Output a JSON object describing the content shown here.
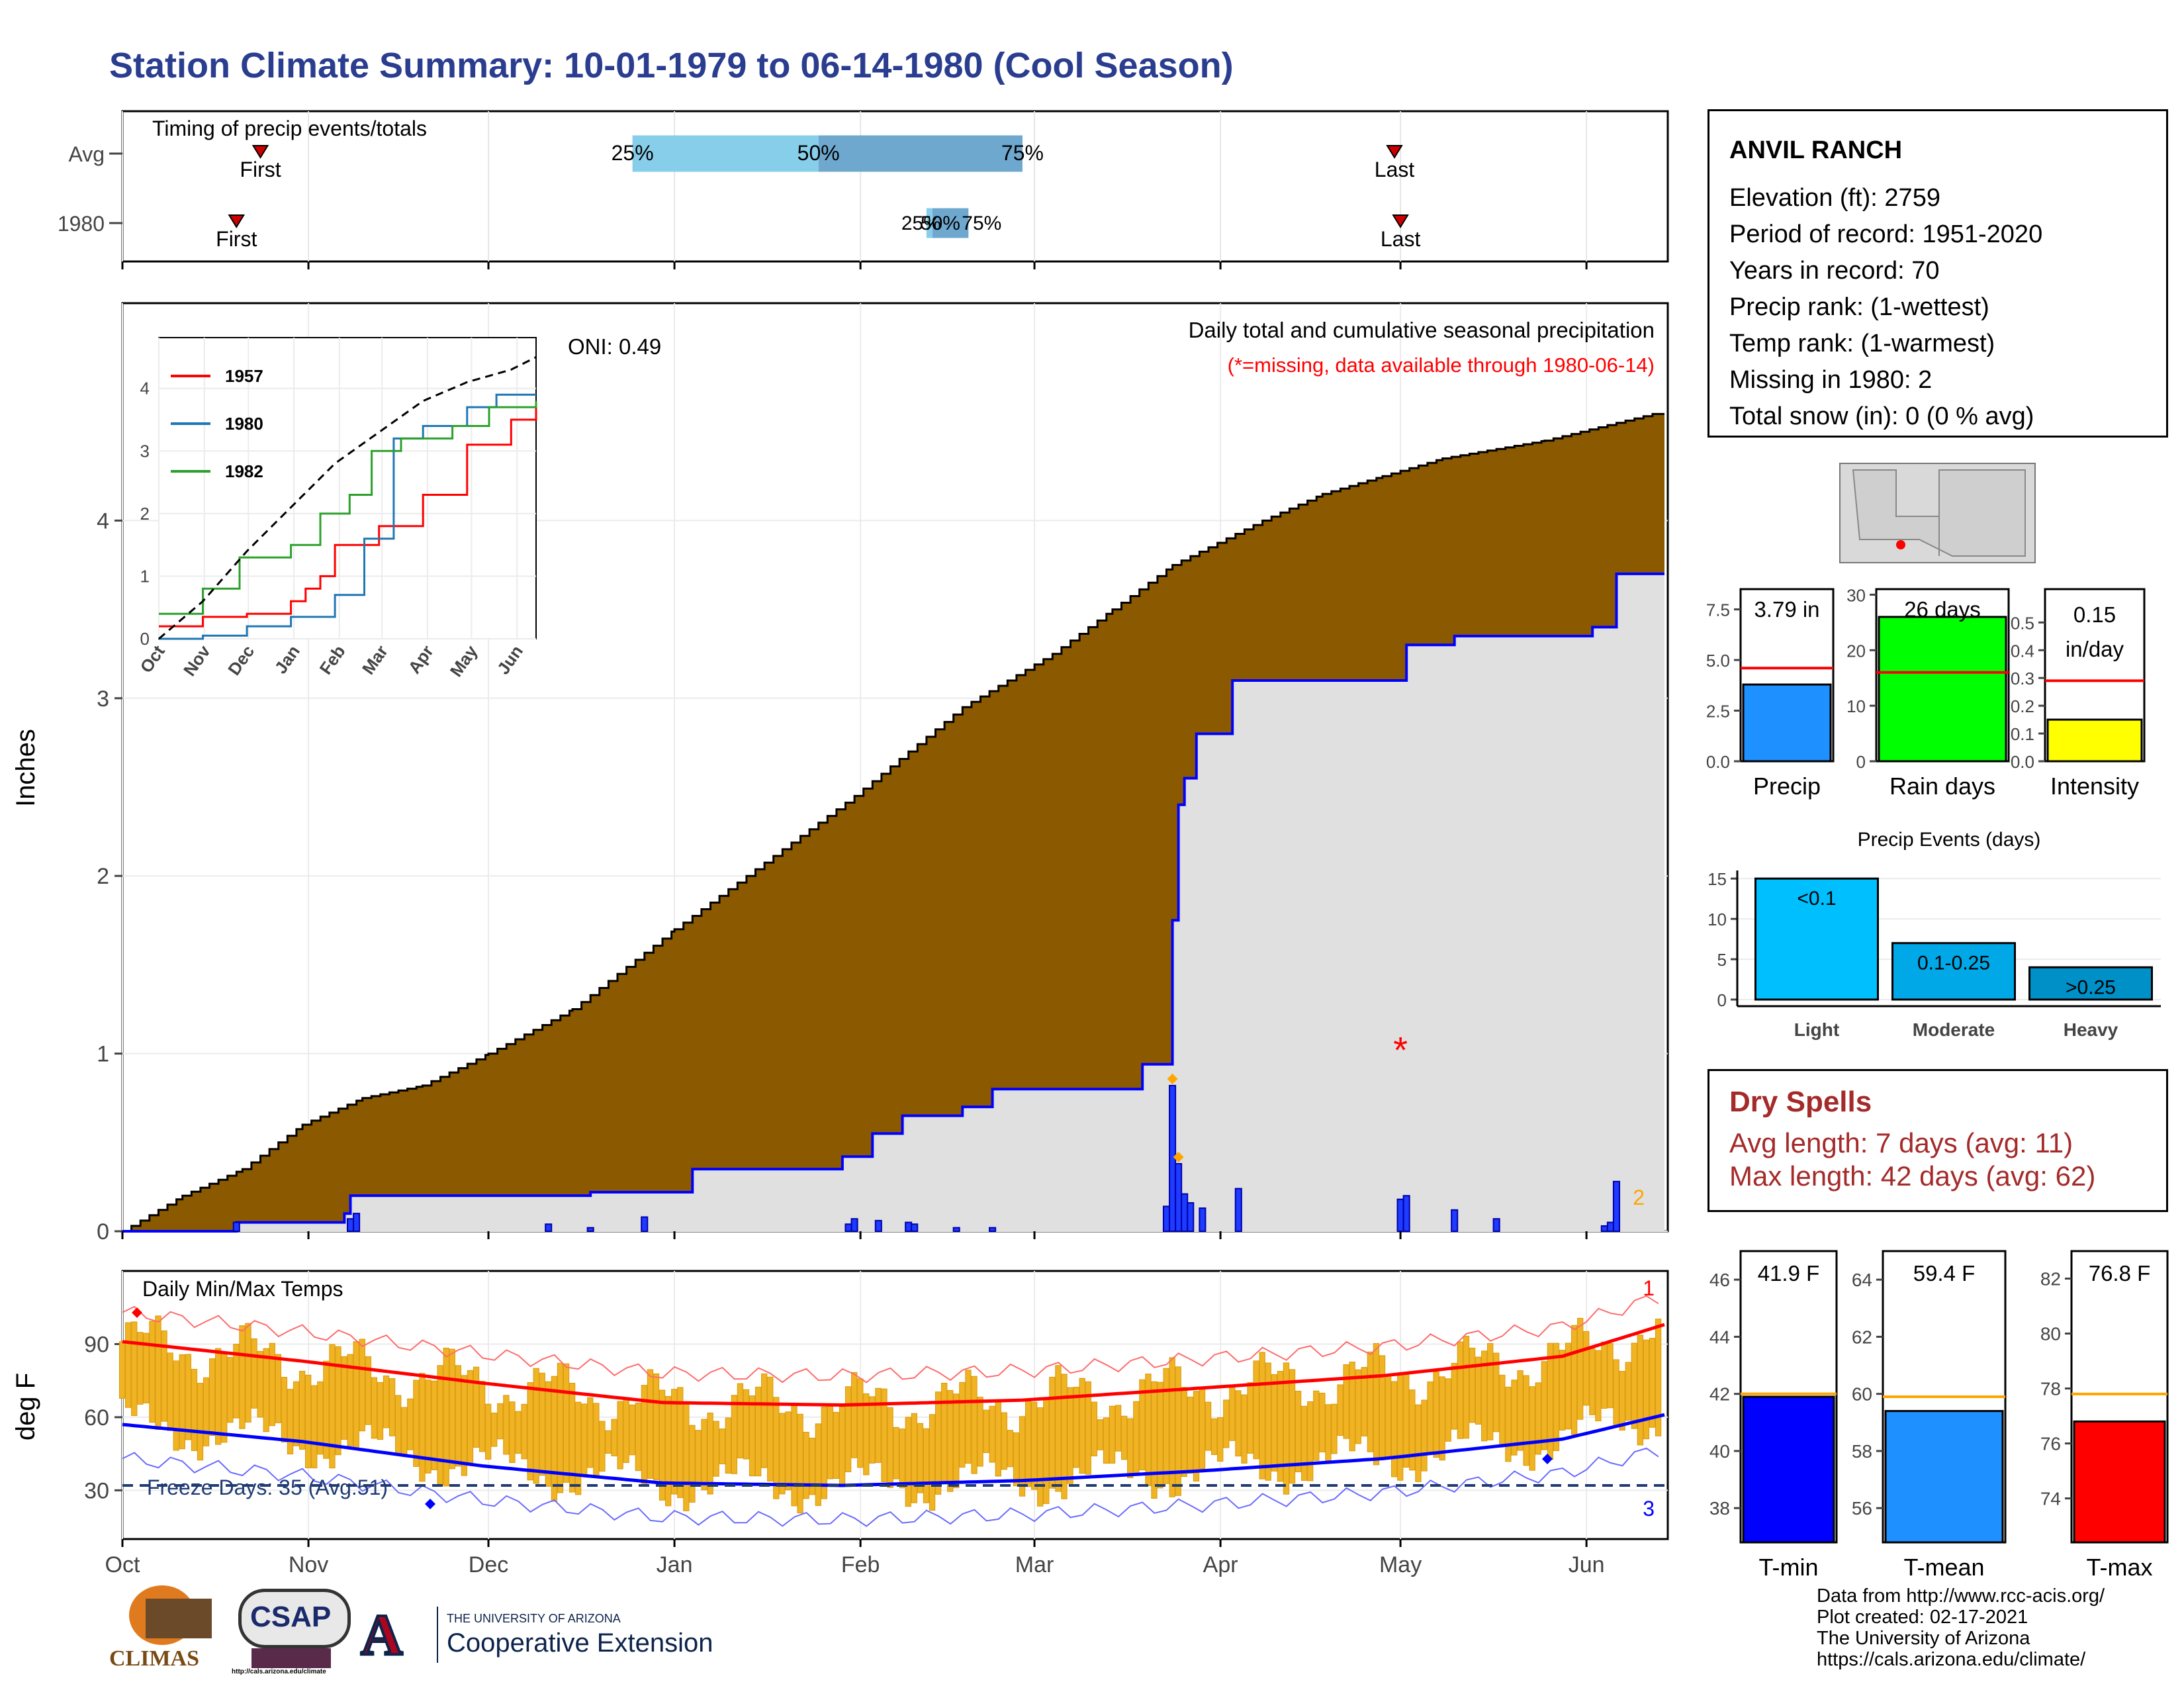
{
  "title": "Station Climate Summary: 10-01-1979 to 06-14-1980 (Cool Season)",
  "station": {
    "name": "ANVIL RANCH",
    "lines": [
      "Elevation (ft): 2759",
      "Period of record: 1951-2020",
      "Years in record: 70",
      "Precip rank:  (1-wettest)",
      "Temp rank:  (1-warmest)",
      "Missing in 1980: 2",
      "Total snow (in): 0 (0 % avg)"
    ]
  },
  "dry_spells": {
    "heading": "Dry Spells",
    "avg": "Avg length: 7 days (avg: 11)",
    "max": "Max length: 42 days (avg: 62)"
  },
  "footer": {
    "lines": [
      "Data from http://www.rcc-acis.org/",
      "Plot created: 02-17-2021",
      "The University of Arizona",
      "https://cals.arizona.edu/climate/"
    ]
  },
  "logos": {
    "climas": "CLIMAS",
    "csap": "CSAP",
    "csap_url": "http://cals.arizona.edu/climate",
    "ua_small": "THE UNIVERSITY OF ARIZONA",
    "ua_big": "Cooperative Extension"
  },
  "colors": {
    "title": "#2a3d8f",
    "precip_fill": "#8b5a00",
    "precip_1980": "#0000ff",
    "gray_fill": "#e0e0e0",
    "temp_bar": "#f0b323",
    "tmax_line": "#ff0000",
    "tmin_line": "#0000ff",
    "dry": "#a52a2a"
  },
  "chart_data": [
    {
      "id": "timing",
      "type": "bar",
      "title": "Timing of precip events/totals",
      "rows": [
        "Avg",
        "1980"
      ],
      "months": [
        "Oct",
        "Nov",
        "Dec",
        "Jan",
        "Feb",
        "Mar",
        "Apr",
        "May",
        "Jun"
      ],
      "avg": {
        "first": "1979-10-24",
        "q25": "1979-12-25",
        "q50": "1980-01-25",
        "q75": "1980-02-28",
        "last": "1980-04-30"
      },
      "y1980": {
        "first": "1979-10-20",
        "q25": "1980-02-12",
        "q50": "1980-02-13",
        "q75": "1980-02-19",
        "last": "1980-05-01"
      },
      "labels": {
        "first": "First",
        "last": "Last",
        "q25": "25%",
        "q50": "50%",
        "q75": "75%"
      }
    },
    {
      "id": "main_precip",
      "type": "area",
      "title": "Daily total and cumulative seasonal precipitation",
      "subtitle": "(*=missing, data available through 1980-06-14)",
      "ylabel": "Inches",
      "ylim": [
        0,
        5
      ],
      "yticks": [
        0,
        1,
        2,
        3,
        4
      ],
      "x_months": [
        "Oct",
        "Nov",
        "Dec",
        "Jan",
        "Feb",
        "Mar",
        "Apr",
        "May",
        "Jun"
      ],
      "oni": "ONI: 0.49",
      "missing_count": "2",
      "avg_cumulative": [
        [
          0,
          0
        ],
        [
          10,
          0.2
        ],
        [
          20,
          0.35
        ],
        [
          30,
          0.6
        ],
        [
          40,
          0.75
        ],
        [
          50,
          0.82
        ],
        [
          61,
          1.0
        ],
        [
          75,
          1.25
        ],
        [
          92,
          1.7
        ],
        [
          110,
          2.15
        ],
        [
          122,
          2.45
        ],
        [
          140,
          2.95
        ],
        [
          155,
          3.25
        ],
        [
          165,
          3.5
        ],
        [
          175,
          3.75
        ],
        [
          190,
          4.0
        ],
        [
          200,
          4.15
        ],
        [
          210,
          4.25
        ],
        [
          220,
          4.35
        ],
        [
          237,
          4.45
        ],
        [
          255,
          4.6
        ],
        [
          257,
          4.6
        ]
      ],
      "cum_1980": [
        [
          0,
          0
        ],
        [
          19,
          0
        ],
        [
          19,
          0.05
        ],
        [
          37,
          0.05
        ],
        [
          37,
          0.1
        ],
        [
          38,
          0.1
        ],
        [
          38,
          0.2
        ],
        [
          78,
          0.2
        ],
        [
          78,
          0.22
        ],
        [
          95,
          0.22
        ],
        [
          95,
          0.35
        ],
        [
          120,
          0.35
        ],
        [
          120,
          0.42
        ],
        [
          125,
          0.42
        ],
        [
          125,
          0.55
        ],
        [
          130,
          0.55
        ],
        [
          130,
          0.6
        ],
        [
          130,
          0.65
        ],
        [
          140,
          0.65
        ],
        [
          140,
          0.7
        ],
        [
          145,
          0.7
        ],
        [
          145,
          0.75
        ],
        [
          145,
          0.8
        ],
        [
          170,
          0.8
        ],
        [
          170,
          0.94
        ],
        [
          175,
          0.94
        ],
        [
          175,
          1.75
        ],
        [
          176,
          1.75
        ],
        [
          176,
          2.4
        ],
        [
          177,
          2.4
        ],
        [
          177,
          2.55
        ],
        [
          179,
          2.55
        ],
        [
          179,
          2.8
        ],
        [
          185,
          2.8
        ],
        [
          185,
          3.1
        ],
        [
          214,
          3.1
        ],
        [
          214,
          3.3
        ],
        [
          222,
          3.3
        ],
        [
          222,
          3.35
        ],
        [
          245,
          3.35
        ],
        [
          245,
          3.4
        ],
        [
          249,
          3.4
        ],
        [
          249,
          3.7
        ],
        [
          257,
          3.7
        ]
      ],
      "daily_1980": [
        [
          19,
          0.05
        ],
        [
          38,
          0.07
        ],
        [
          39,
          0.1
        ],
        [
          71,
          0.04
        ],
        [
          78,
          0.02
        ],
        [
          87,
          0.08
        ],
        [
          121,
          0.04
        ],
        [
          122,
          0.07
        ],
        [
          126,
          0.06
        ],
        [
          131,
          0.05
        ],
        [
          132,
          0.04
        ],
        [
          139,
          0.02
        ],
        [
          145,
          0.02
        ],
        [
          174,
          0.14
        ],
        [
          175,
          0.82
        ],
        [
          176,
          0.38
        ],
        [
          177,
          0.21
        ],
        [
          178,
          0.16
        ],
        [
          180,
          0.13
        ],
        [
          186,
          0.24
        ],
        [
          213,
          0.18
        ],
        [
          214,
          0.2
        ],
        [
          222,
          0.12
        ],
        [
          229,
          0.07
        ],
        [
          247,
          0.03
        ],
        [
          248,
          0.05
        ],
        [
          249,
          0.28
        ]
      ],
      "inset": {
        "type": "line",
        "yticks": [
          0,
          1,
          2,
          3,
          4
        ],
        "months": [
          "Oct",
          "Nov",
          "Dec",
          "Jan",
          "Feb",
          "Mar",
          "Apr",
          "May",
          "Jun"
        ],
        "series": [
          {
            "name": "1957",
            "color": "#ff0000",
            "values": [
              [
                0,
                0.2
              ],
              [
                30,
                0.35
              ],
              [
                60,
                0.4
              ],
              [
                90,
                0.6
              ],
              [
                100,
                0.8
              ],
              [
                110,
                1.0
              ],
              [
                120,
                1.5
              ],
              [
                150,
                1.8
              ],
              [
                180,
                2.3
              ],
              [
                210,
                3.1
              ],
              [
                240,
                3.5
              ],
              [
                257,
                3.7
              ]
            ]
          },
          {
            "name": "1980",
            "color": "#1f77b4",
            "values": [
              [
                0,
                0
              ],
              [
                30,
                0.05
              ],
              [
                60,
                0.2
              ],
              [
                90,
                0.35
              ],
              [
                120,
                0.7
              ],
              [
                140,
                1.6
              ],
              [
                160,
                3.2
              ],
              [
                180,
                3.4
              ],
              [
                200,
                3.4
              ],
              [
                210,
                3.7
              ],
              [
                230,
                3.9
              ],
              [
                257,
                3.9
              ]
            ]
          },
          {
            "name": "1982",
            "color": "#2ca02c",
            "values": [
              [
                0,
                0.4
              ],
              [
                30,
                0.8
              ],
              [
                55,
                1.3
              ],
              [
                90,
                1.5
              ],
              [
                110,
                2.0
              ],
              [
                130,
                2.3
              ],
              [
                145,
                3.0
              ],
              [
                165,
                3.2
              ],
              [
                200,
                3.4
              ],
              [
                225,
                3.7
              ],
              [
                257,
                3.8
              ]
            ]
          },
          {
            "name": "",
            "color": "#000000",
            "values": [
              [
                0,
                0
              ],
              [
                30,
                0.6
              ],
              [
                60,
                1.4
              ],
              [
                90,
                2.1
              ],
              [
                120,
                2.8
              ],
              [
                150,
                3.3
              ],
              [
                180,
                3.8
              ],
              [
                210,
                4.1
              ],
              [
                240,
                4.3
              ],
              [
                257,
                4.5
              ]
            ]
          }
        ]
      }
    },
    {
      "id": "temps",
      "type": "bar",
      "title": "Daily Min/Max Temps",
      "ylabel": "deg F",
      "yticks": [
        30,
        60,
        90
      ],
      "ylim": [
        10,
        120
      ],
      "freeze": "Freeze Days: 35 (Avg:51)",
      "record_max_count": "1",
      "record_min_count": "3",
      "avg_tmax": [
        [
          0,
          91
        ],
        [
          30,
          83
        ],
        [
          60,
          74
        ],
        [
          90,
          66
        ],
        [
          120,
          65
        ],
        [
          150,
          67
        ],
        [
          180,
          72
        ],
        [
          210,
          77
        ],
        [
          240,
          85
        ],
        [
          257,
          98
        ]
      ],
      "avg_tmin": [
        [
          0,
          57
        ],
        [
          30,
          50
        ],
        [
          60,
          40
        ],
        [
          90,
          33
        ],
        [
          120,
          32
        ],
        [
          150,
          34
        ],
        [
          180,
          38
        ],
        [
          210,
          43
        ],
        [
          240,
          51
        ],
        [
          257,
          61
        ]
      ]
    },
    {
      "id": "precip_bar",
      "type": "bar",
      "categories": [
        "Precip"
      ],
      "values": [
        3.79
      ],
      "avg": 4.6,
      "yticks": [
        "0.0",
        "2.5",
        "5.0",
        "7.5"
      ],
      "ylim": [
        0,
        8.5
      ],
      "label": "3.79 in",
      "color": "#1e90ff"
    },
    {
      "id": "raindays_bar",
      "type": "bar",
      "categories": [
        "Rain days"
      ],
      "values": [
        26
      ],
      "avg": 16,
      "yticks": [
        "0",
        "10",
        "20",
        "30"
      ],
      "ylim": [
        0,
        31
      ],
      "label": "26 days",
      "color": "#00ff00"
    },
    {
      "id": "intensity_bar",
      "type": "bar",
      "categories": [
        "Intensity"
      ],
      "values": [
        0.15
      ],
      "avg": 0.29,
      "yticks": [
        "0.0",
        "0.1",
        "0.2",
        "0.3",
        "0.4",
        "0.5"
      ],
      "ylim": [
        0,
        0.62
      ],
      "label": "0.15",
      "label2": "in/day",
      "color": "#ffff00"
    },
    {
      "id": "precip_events",
      "type": "bar",
      "title": "Precip Events (days)",
      "categories": [
        "Light",
        "Moderate",
        "Heavy"
      ],
      "values": [
        15,
        7,
        4
      ],
      "labels": [
        "<0.1",
        "0.1-0.25",
        ">0.25"
      ],
      "yticks": [
        "0",
        "5",
        "10",
        "15"
      ],
      "ylim": [
        0,
        16
      ],
      "colors": [
        "#00bfff",
        "#00a8e8",
        "#0090c8"
      ]
    },
    {
      "id": "tmin_bar",
      "type": "bar",
      "categories": [
        "T-min"
      ],
      "values": [
        41.9
      ],
      "avg": 42.0,
      "yticks": [
        "38",
        "40",
        "42",
        "44",
        "46"
      ],
      "ylim": [
        36.8,
        47
      ],
      "label": "41.9 F",
      "color": "#0000ff"
    },
    {
      "id": "tmean_bar",
      "type": "bar",
      "categories": [
        "T-mean"
      ],
      "values": [
        59.4
      ],
      "avg": 59.9,
      "yticks": [
        "56",
        "58",
        "60",
        "62",
        "64"
      ],
      "ylim": [
        54.8,
        65
      ],
      "label": "59.4 F",
      "color": "#1e90ff"
    },
    {
      "id": "tmax_bar",
      "type": "bar",
      "categories": [
        "T-max"
      ],
      "values": [
        76.8
      ],
      "avg": 77.8,
      "yticks": [
        "74",
        "76",
        "78",
        "80",
        "82"
      ],
      "ylim": [
        72.4,
        83
      ],
      "label": "76.8 F",
      "color": "#ff0000"
    }
  ]
}
